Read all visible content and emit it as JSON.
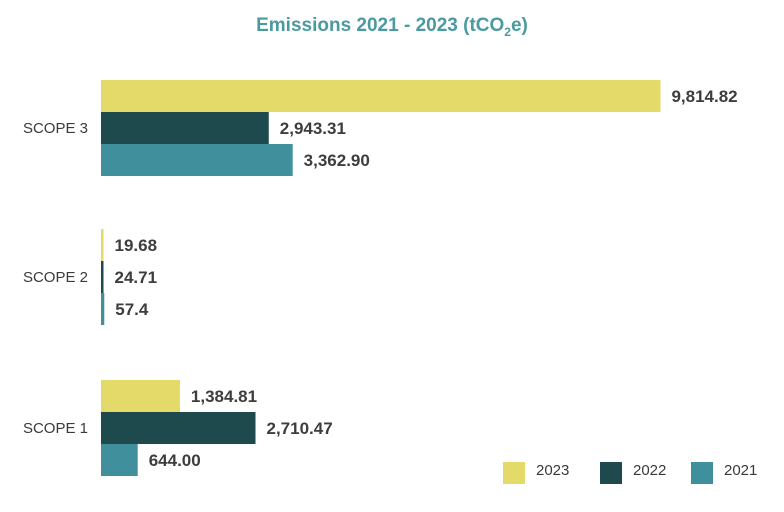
{
  "chart_data": {
    "type": "bar",
    "orientation": "horizontal",
    "title": "Emissions 2021 - 2023 (tCO",
    "title_sub": "2",
    "title_end": "e)",
    "categories": [
      "SCOPE 3",
      "SCOPE 2",
      "SCOPE 1"
    ],
    "series": [
      {
        "name": "2023",
        "color": "#e3da6a",
        "values": [
          9814.82,
          19.68,
          1384.81
        ],
        "labels": [
          "9,814.82",
          "19.68",
          "1,384.81"
        ]
      },
      {
        "name": "2022",
        "color": "#1e4a4d",
        "values": [
          2943.31,
          24.71,
          2710.47
        ],
        "labels": [
          "2,943.31",
          "24.71",
          "2,710.47"
        ]
      },
      {
        "name": "2021",
        "color": "#3f8f9c",
        "values": [
          3362.9,
          57.4,
          644.0
        ],
        "labels": [
          "3,362.90",
          "57.4",
          "644.00"
        ]
      }
    ],
    "xlim": [
      0,
      10000
    ],
    "grid": false,
    "legend_position": "bottom-right",
    "title_color": "#4a9aa0"
  }
}
